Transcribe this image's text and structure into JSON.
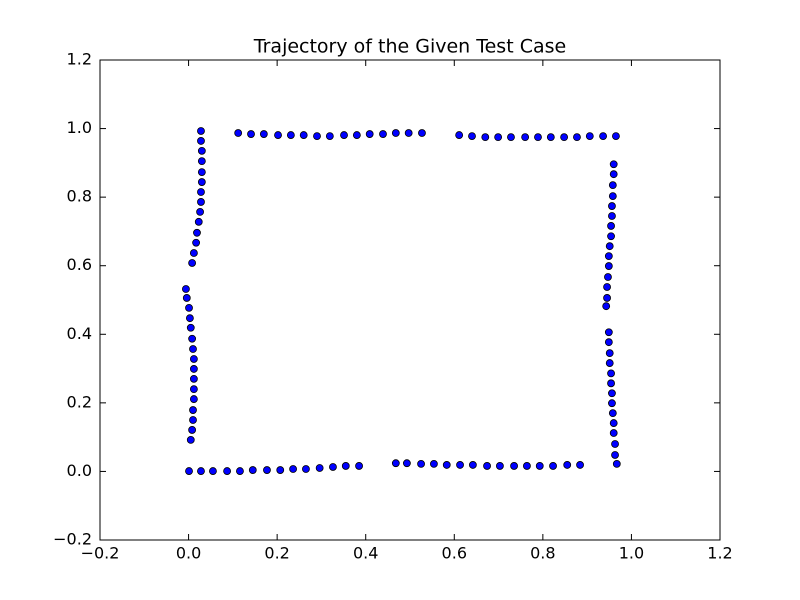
{
  "chart_data": {
    "type": "scatter",
    "title": "Trajectory of the Given Test Case",
    "color": "#0000ff",
    "edgecolor": "#000000",
    "xlim": [
      -0.2,
      1.2
    ],
    "ylim": [
      -0.2,
      1.2
    ],
    "xticks": [
      {
        "value": -0.2,
        "label": "−0.2"
      },
      {
        "value": 0,
        "label": "0.0"
      },
      {
        "value": 0.2,
        "label": "0.2"
      },
      {
        "value": 0.4,
        "label": "0.4"
      },
      {
        "value": 0.6,
        "label": "0.6"
      },
      {
        "value": 0.8,
        "label": "0.8"
      },
      {
        "value": 1,
        "label": "1.0"
      },
      {
        "value": 1.2,
        "label": "1.2"
      }
    ],
    "yticks": [
      {
        "value": -0.2,
        "label": "−0.2"
      },
      {
        "value": 0,
        "label": "0.0"
      },
      {
        "value": 0.2,
        "label": "0.2"
      },
      {
        "value": 0.4,
        "label": "0.4"
      },
      {
        "value": 0.6,
        "label": "0.6"
      },
      {
        "value": 0.8,
        "label": "0.8"
      },
      {
        "value": 1,
        "label": "1.0"
      },
      {
        "value": 1.2,
        "label": "1.2"
      }
    ],
    "x": [
      0.001,
      0.028,
      0.055,
      0.087,
      0.116,
      0.145,
      0.177,
      0.207,
      0.236,
      0.265,
      0.296,
      0.326,
      0.355,
      0.385,
      0.468,
      0.493,
      0.525,
      0.554,
      0.583,
      0.613,
      0.642,
      0.674,
      0.703,
      0.735,
      0.764,
      0.793,
      0.823,
      0.855,
      0.884,
      0.967,
      0.963,
      0.963,
      0.96,
      0.96,
      0.958,
      0.956,
      0.956,
      0.954,
      0.954,
      0.951,
      0.951,
      0.949,
      0.949,
      0.943,
      0.945,
      0.945,
      0.947,
      0.949,
      0.949,
      0.951,
      0.954,
      0.954,
      0.956,
      0.956,
      0.958,
      0.958,
      0.96,
      0.96,
      0.965,
      0.936,
      0.906,
      0.877,
      0.848,
      0.818,
      0.789,
      0.76,
      0.728,
      0.699,
      0.67,
      0.64,
      0.611,
      0.527,
      0.497,
      0.468,
      0.439,
      0.409,
      0.38,
      0.351,
      0.319,
      0.29,
      0.26,
      0.231,
      0.202,
      0.17,
      0.141,
      0.112,
      0.028,
      0.028,
      0.03,
      0.03,
      0.03,
      0.03,
      0.028,
      0.028,
      0.026,
      0.023,
      0.019,
      0.017,
      0.012,
      0.008,
      -0.006,
      -0.004,
      0.001,
      0.003,
      0.005,
      0.008,
      0.01,
      0.012,
      0.012,
      0.012,
      0.012,
      0.012,
      0.01,
      0.01,
      0.008,
      0.005
    ],
    "values": [
      0.001,
      0.001,
      0.001,
      0.001,
      0.001,
      0.004,
      0.004,
      0.004,
      0.007,
      0.007,
      0.01,
      0.013,
      0.016,
      0.016,
      0.024,
      0.024,
      0.022,
      0.022,
      0.019,
      0.019,
      0.019,
      0.016,
      0.016,
      0.016,
      0.016,
      0.016,
      0.016,
      0.019,
      0.019,
      0.022,
      0.048,
      0.08,
      0.112,
      0.141,
      0.17,
      0.199,
      0.228,
      0.257,
      0.286,
      0.316,
      0.345,
      0.377,
      0.406,
      0.482,
      0.506,
      0.538,
      0.567,
      0.599,
      0.628,
      0.657,
      0.686,
      0.716,
      0.745,
      0.774,
      0.803,
      0.835,
      0.867,
      0.896,
      0.978,
      0.978,
      0.978,
      0.975,
      0.975,
      0.975,
      0.975,
      0.975,
      0.975,
      0.975,
      0.975,
      0.978,
      0.981,
      0.987,
      0.987,
      0.987,
      0.984,
      0.984,
      0.981,
      0.981,
      0.978,
      0.978,
      0.981,
      0.981,
      0.981,
      0.984,
      0.984,
      0.987,
      0.993,
      0.964,
      0.935,
      0.905,
      0.873,
      0.844,
      0.815,
      0.786,
      0.757,
      0.728,
      0.696,
      0.667,
      0.637,
      0.608,
      0.532,
      0.506,
      0.477,
      0.447,
      0.419,
      0.387,
      0.357,
      0.328,
      0.299,
      0.27,
      0.24,
      0.211,
      0.179,
      0.15,
      0.121,
      0.092
    ]
  }
}
